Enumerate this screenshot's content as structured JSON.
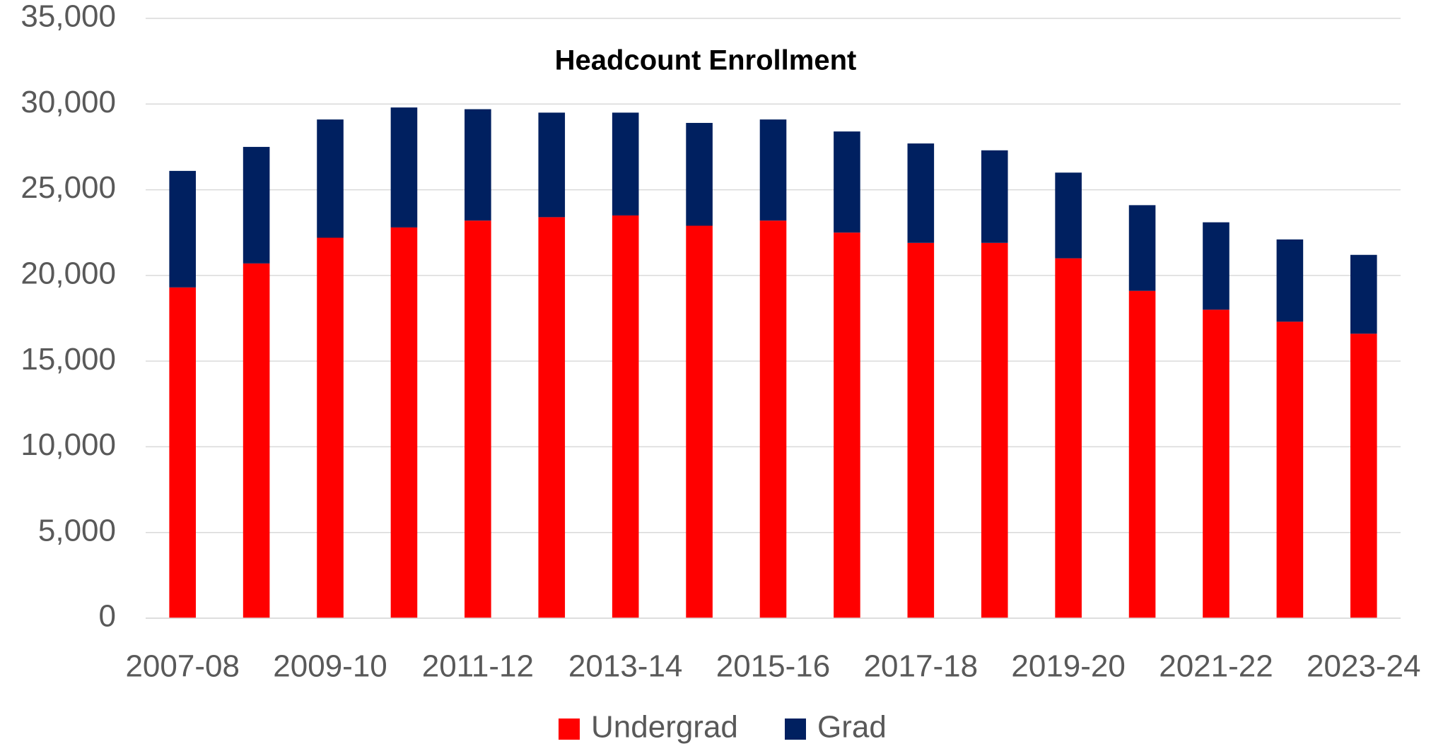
{
  "chart_data": {
    "type": "stacked_bar",
    "title": "Headcount Enrollment",
    "categories": [
      "2007-08",
      null,
      "2009-10",
      null,
      "2011-12",
      null,
      "2013-14",
      null,
      "2015-16",
      null,
      "2017-18",
      null,
      "2019-20",
      null,
      "2021-22",
      null,
      "2023-24"
    ],
    "series": [
      {
        "name": "Undergrad",
        "color": "#ff0000",
        "values": [
          19300,
          20700,
          22200,
          22800,
          23200,
          23400,
          23500,
          22900,
          23200,
          22500,
          21900,
          21900,
          21000,
          19100,
          18000,
          17300,
          16600
        ]
      },
      {
        "name": "Grad",
        "color": "#002060",
        "values": [
          6800,
          6800,
          6900,
          7000,
          6500,
          6100,
          6000,
          6000,
          5900,
          5900,
          5800,
          5400,
          5000,
          5000,
          5100,
          4800,
          4600
        ]
      }
    ],
    "ylim": [
      0,
      35000
    ],
    "yticks": [
      0,
      {
        "value": 5000,
        "label": "5,000"
      },
      {
        "value": 10000,
        "label": "10,000"
      },
      {
        "value": 15000,
        "label": "15,000"
      },
      {
        "value": 20000,
        "label": "20,000"
      },
      {
        "value": 25000,
        "label": "25,000"
      },
      {
        "value": 30000,
        "label": "30,000"
      },
      {
        "value": 35000,
        "label": "35,000"
      }
    ],
    "grid": true,
    "legend": "bottom"
  }
}
